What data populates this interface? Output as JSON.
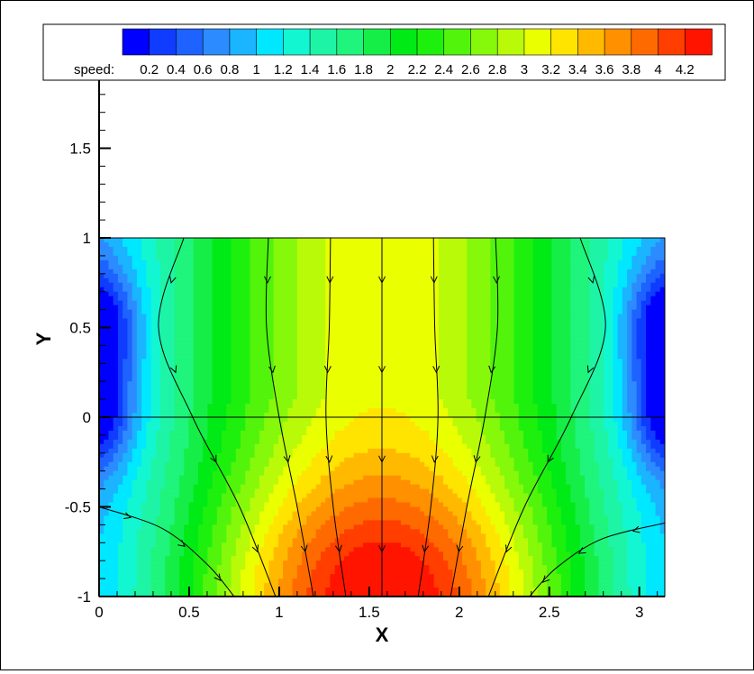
{
  "chart_data": {
    "type": "heatmap",
    "title": "",
    "xlabel": "X",
    "ylabel": "Y",
    "xlim": [
      0,
      3.1416
    ],
    "ylim": [
      -1,
      1.9
    ],
    "x_ticks": [
      "0",
      "0.5",
      "1",
      "1.5",
      "2",
      "2.5",
      "3"
    ],
    "y_ticks": [
      "-1",
      "-0.5",
      "0",
      "0.5",
      "1",
      "1.5"
    ],
    "x_tick_values": [
      0,
      0.5,
      1,
      1.5,
      2,
      2.5,
      3
    ],
    "y_tick_values": [
      -1,
      -0.5,
      0,
      0.5,
      1,
      1.5
    ],
    "domain": {
      "x": [
        0,
        3.1416
      ],
      "y": [
        -1,
        1
      ]
    },
    "interface_y": 0,
    "legend": {
      "label": "speed:",
      "placement": "top",
      "levels": [
        "0.2",
        "0.4",
        "0.6",
        "0.8",
        "1",
        "1.2",
        "1.4",
        "1.6",
        "1.8",
        "2",
        "2.2",
        "2.4",
        "2.6",
        "2.8",
        "3",
        "3.2",
        "3.4",
        "3.6",
        "3.8",
        "4",
        "4.2"
      ],
      "colors": [
        "#0000ff",
        "#0f3cff",
        "#1e62ff",
        "#2c8cff",
        "#1ab4ff",
        "#00e8ff",
        "#12f6d2",
        "#1ef4a6",
        "#1ff47c",
        "#16ee48",
        "#00ea16",
        "#1ef00e",
        "#52f40c",
        "#86f80a",
        "#b8fa08",
        "#eaff00",
        "#ffe400",
        "#ffba00",
        "#ff9000",
        "#ff6a00",
        "#ff3e00",
        "#ff1400"
      ]
    },
    "streamlines": [
      {
        "x": [
          1.5708,
          1.5708,
          1.5708,
          1.5708,
          1.5708
        ],
        "y": [
          1.0,
          0.5,
          0.0,
          -0.5,
          -1.0
        ]
      },
      {
        "x": [
          1.285,
          1.278,
          1.26,
          1.3,
          1.37
        ],
        "y": [
          1.0,
          0.5,
          0.0,
          -0.5,
          -1.0
        ]
      },
      {
        "x": [
          1.857,
          1.864,
          1.882,
          1.842,
          1.772
        ],
        "y": [
          1.0,
          0.5,
          0.0,
          -0.5,
          -1.0
        ]
      },
      {
        "x": [
          0.94,
          0.93,
          1.0,
          1.1,
          1.19
        ],
        "y": [
          1.0,
          0.5,
          0.0,
          -0.5,
          -1.0
        ]
      },
      {
        "x": [
          2.202,
          2.212,
          2.142,
          2.042,
          1.952
        ],
        "y": [
          1.0,
          0.5,
          0.0,
          -0.5,
          -1.0
        ]
      },
      {
        "x": [
          0.47,
          0.33,
          0.52,
          0.78,
          0.98
        ],
        "y": [
          1.0,
          0.5,
          0.0,
          -0.5,
          -1.0
        ]
      },
      {
        "x": [
          2.672,
          2.812,
          2.622,
          2.362,
          2.162
        ],
        "y": [
          1.0,
          0.5,
          0.0,
          -0.5,
          -1.0
        ]
      },
      {
        "x": [
          0.0,
          0.35,
          0.6,
          0.75
        ],
        "y": [
          -0.5,
          -0.62,
          -0.82,
          -1.0
        ]
      },
      {
        "x": [
          3.1416,
          2.79,
          2.54,
          2.39
        ],
        "y": [
          -0.59,
          -0.68,
          -0.84,
          -1.0
        ]
      }
    ]
  }
}
